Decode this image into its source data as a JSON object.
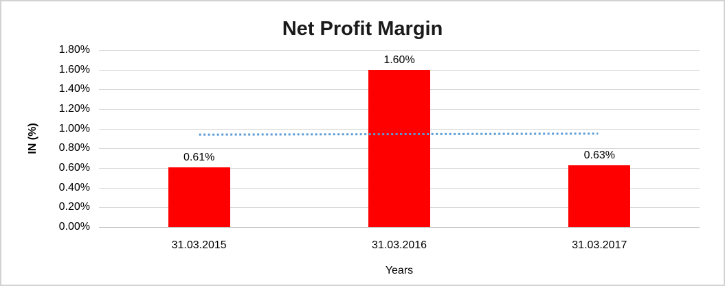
{
  "chart_data": {
    "type": "bar",
    "title": "Net Profit Margin",
    "xlabel": "Years",
    "ylabel": "IN (%)",
    "categories": [
      "31.03.2015",
      "31.03.2016",
      "31.03.2017"
    ],
    "values": [
      0.61,
      1.6,
      0.63
    ],
    "value_labels": [
      "0.61%",
      "1.60%",
      "0.63%"
    ],
    "y_ticks": [
      "0.00%",
      "0.20%",
      "0.40%",
      "0.60%",
      "0.80%",
      "1.00%",
      "1.20%",
      "1.40%",
      "1.60%",
      "1.80%"
    ],
    "ylim": [
      0,
      1.8
    ],
    "grid": true,
    "legend": "none",
    "trendline": {
      "style": "dotted",
      "start_value": 0.94,
      "end_value": 0.95,
      "color": "#5B9BD5"
    },
    "colors": {
      "bar": "#FF0000",
      "gridline": "#D9D9D9",
      "axis_line": "#BFBFBF",
      "text": "#000000",
      "title": "#1A1A1A",
      "border": "#D2D2D2",
      "background": "#FFFFFF"
    }
  }
}
